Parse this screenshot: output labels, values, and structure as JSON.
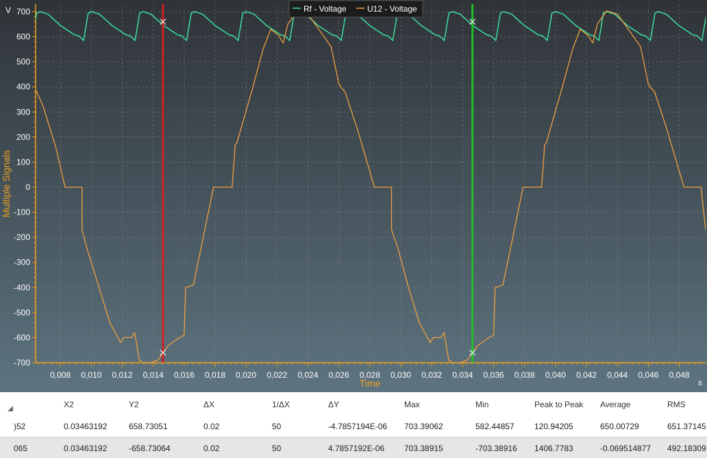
{
  "chart_data": {
    "type": "line",
    "ylabel": "Multiple Signals",
    "xlabel": "Time",
    "y_unit": "V",
    "x_unit": "s",
    "xlim": [
      0.0064,
      0.0497
    ],
    "ylim": [
      -700,
      700
    ],
    "yticks": [
      "700",
      "600",
      "500",
      "400",
      "300",
      "200",
      "100",
      "0",
      "-100",
      "-200",
      "-300",
      "-400",
      "-500",
      "-600",
      "-700"
    ],
    "xticks": [
      "0,008",
      "0,010",
      "0,012",
      "0,014",
      "0,016",
      "0,018",
      "0,020",
      "0,022",
      "0,024",
      "0,026",
      "0,028",
      "0,030",
      "0,032",
      "0,034",
      "0,036",
      "0,038",
      "0,040",
      "0,042",
      "0,044",
      "0,046",
      "0,048"
    ],
    "grid": true,
    "legend_position": "top-center",
    "series": [
      {
        "name": "Rf - Voltage",
        "color": "#3ee0a0",
        "period": 0.00333,
        "x_start": 0.0065,
        "cycle_x": [
          0,
          0.0002,
          0.0007,
          0.0015,
          0.0024,
          0.0027,
          0.003,
          0.0033
        ],
        "cycle_y": [
          695,
          700,
          690,
          645,
          608,
          603,
          585,
          695
        ]
      },
      {
        "name": "U12 - Voltage",
        "color": "#f0a040",
        "x": [
          0.0064,
          0.0069,
          0.0077,
          0.0083,
          0.0088,
          0.0094,
          0.0094,
          0.0097,
          0.0105,
          0.0112,
          0.0119,
          0.0121,
          0.0126,
          0.0128,
          0.0131,
          0.0134,
          0.0138,
          0.0143,
          0.015,
          0.0157,
          0.016,
          0.0161,
          0.0166,
          0.017,
          0.0179,
          0.0183,
          0.0191,
          0.0193,
          0.0194,
          0.0197,
          0.0204,
          0.0211,
          0.0216,
          0.0221,
          0.0224,
          0.0227,
          0.0233,
          0.024,
          0.0247,
          0.0255,
          0.026,
          0.0261,
          0.0261,
          0.0264,
          0.0272,
          0.0283,
          0.0288,
          0.0294,
          0.0294,
          0.0298,
          0.0305,
          0.0312,
          0.0319,
          0.0321,
          0.0326,
          0.0328,
          0.0331,
          0.0334,
          0.0338,
          0.0343,
          0.035,
          0.0357,
          0.036,
          0.0361,
          0.0366,
          0.037,
          0.0379,
          0.0383,
          0.0391,
          0.0393,
          0.0394,
          0.0397,
          0.0404,
          0.0411,
          0.0416,
          0.0421,
          0.0424,
          0.0427,
          0.0433,
          0.044,
          0.0447,
          0.0455,
          0.046,
          0.0461,
          0.0461,
          0.0464,
          0.0472,
          0.0483,
          0.0488,
          0.0494,
          0.0497
        ],
        "y": [
          390,
          320,
          160,
          0,
          0,
          0,
          -170,
          -240,
          -400,
          -540,
          -620,
          -600,
          -600,
          -580,
          -690,
          -703,
          -700,
          -690,
          -630,
          -600,
          -590,
          -400,
          -390,
          -270,
          0,
          0,
          0,
          170,
          175,
          240,
          390,
          550,
          630,
          605,
          575,
          650,
          703,
          690,
          630,
          560,
          410,
          405,
          400,
          380,
          230,
          0,
          0,
          0,
          -170,
          -240,
          -400,
          -540,
          -620,
          -600,
          -600,
          -580,
          -690,
          -703,
          -700,
          -690,
          -630,
          -600,
          -590,
          -400,
          -390,
          -270,
          0,
          0,
          0,
          170,
          175,
          240,
          390,
          550,
          630,
          605,
          575,
          650,
          703,
          690,
          630,
          560,
          410,
          405,
          400,
          380,
          230,
          0,
          0,
          0,
          -170
        ]
      }
    ],
    "cursors": [
      {
        "x": 0.01463,
        "color": "#d42020",
        "marker_y": [
          660,
          -660
        ]
      },
      {
        "x": 0.03463,
        "color": "#22c02a",
        "marker_y": [
          660,
          -660
        ]
      }
    ]
  },
  "table": {
    "headers": [
      "X2",
      "Y2",
      "ΔX",
      "1/ΔX",
      "ΔY",
      "Max",
      "Min",
      "Peak to Peak",
      "Average",
      "RMS"
    ],
    "rows": [
      {
        "cut": ")52",
        "cells": [
          "0.03463192",
          "658.73051",
          "0.02",
          "50",
          "-4.7857194E-06",
          "703.39062",
          "582.44857",
          "120.94205",
          "650.00729",
          "651.37145"
        ]
      },
      {
        "cut": "065",
        "cells": [
          "0.03463192",
          "-658.73064",
          "0.02",
          "50",
          "4.7857192E-06",
          "703.38915",
          "-703.38916",
          "1406.7783",
          "-0.069514877",
          "492.18309"
        ]
      }
    ]
  }
}
